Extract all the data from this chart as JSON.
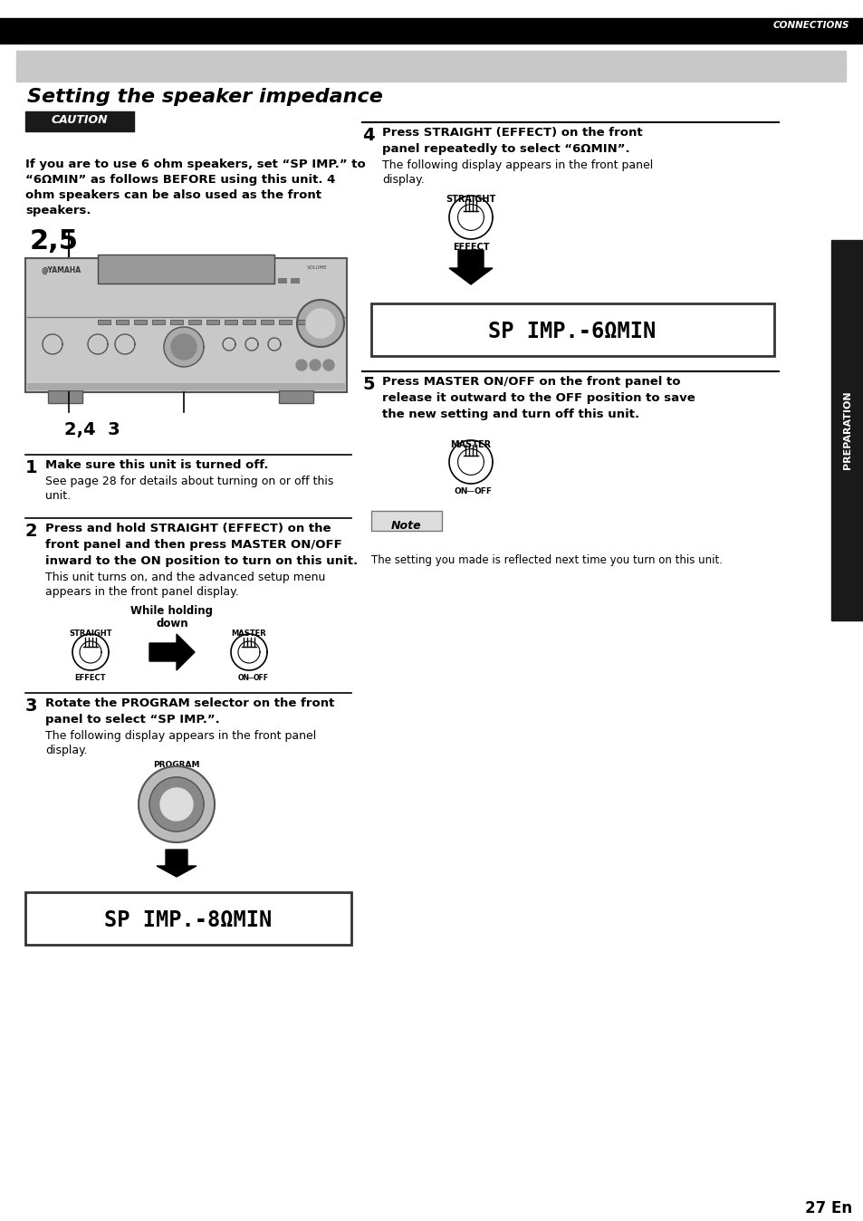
{
  "page_bg": "#ffffff",
  "top_bar_color": "#000000",
  "connections_text": "CONNECTIONS",
  "title_bg": "#c8c8c8",
  "title_text": "Setting the speaker impedance",
  "caution_bg": "#1a1a1a",
  "caution_text": "CAUTION",
  "sidebar_bg": "#1a1a1a",
  "sidebar_text": "PREPARATION",
  "page_number": "27 En",
  "intro_text_line1": "If you are to use 6 ohm speakers, set “SP IMP.” to",
  "intro_text_line2": "“6ΩMIN” as follows BEFORE using this unit. 4",
  "intro_text_line3": "ohm speakers can be also used as the front",
  "intro_text_line4": "speakers.",
  "label_25": "2,5",
  "label_243": "2,4  3",
  "step1_bold": "Make sure this unit is turned off.",
  "step1_normal": "See page 28 for details about turning on or off this\nunit.",
  "step2_bold_1": "Press and hold STRAIGHT (EFFECT) on the",
  "step2_bold_2": "front panel and then press MASTER ON/OFF",
  "step2_bold_3": "inward to the ON position to turn on this unit.",
  "step2_normal_1": "This unit turns on, and the advanced setup menu",
  "step2_normal_2": "appears in the front panel display.",
  "while_holding": "While holding",
  "down_text": "down",
  "straight_label": "STRAIGHT",
  "effect_label": "EFFECT",
  "master_label": "MASTER",
  "on_off_label": "ON   OFF",
  "step3_bold_1": "Rotate the PROGRAM selector on the front",
  "step3_bold_2": "panel to select “SP IMP.”.",
  "step3_normal_1": "The following display appears in the front panel",
  "step3_normal_2": "display.",
  "program_label": "PROGRAM",
  "display_8ohm": "SP IMP.-8ΩMIN",
  "step4_bold_1": "Press STRAIGHT (EFFECT) on the front",
  "step4_bold_2": "panel repeatedly to select “6ΩMIN”.",
  "step4_normal_1": "The following display appears in the front panel",
  "step4_normal_2": "display.",
  "display_6ohm": "SP IMP.-6ΩMIN",
  "step5_bold_1": "Press MASTER ON/OFF on the front panel to",
  "step5_bold_2": "release it outward to the OFF position to save",
  "step5_bold_3": "the new setting and turn off this unit.",
  "note_header": "Note",
  "note_text": "The setting you made is reflected next time you turn on this unit."
}
